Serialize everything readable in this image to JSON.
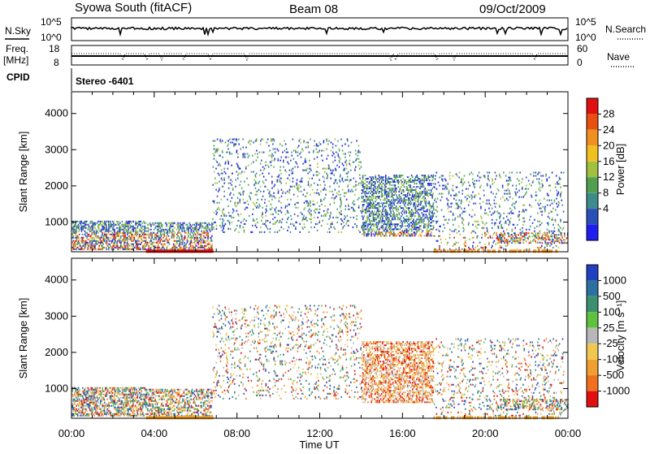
{
  "header": {
    "title": "Syowa South (fitACF)",
    "beam": "Beam 08",
    "date": "09/Oct/2009"
  },
  "noise_panel": {
    "left_label": "N.Sky",
    "right_label": "N.Search",
    "left_ticks": [
      "10^5",
      "10^0"
    ],
    "right_ticks": [
      "10^5",
      "10^0"
    ]
  },
  "freq_panel": {
    "left_label_line1": "Freq.",
    "left_label_line2": "[MHz]",
    "right_label": "Nave",
    "left_ticks": [
      "18",
      "8"
    ],
    "right_ticks": [
      "60",
      "0"
    ]
  },
  "cpid": {
    "label": "CPID",
    "value": "Stereo -6401"
  },
  "x_axis": {
    "label": "Time UT",
    "ticks": [
      "00:00",
      "04:00",
      "08:00",
      "12:00",
      "16:00",
      "20:00",
      "00:00"
    ]
  },
  "chart_data": [
    {
      "type": "heatmap",
      "name": "power",
      "xlabel": "Time UT",
      "ylabel": "Slant Range [km]",
      "xlim": [
        0,
        24
      ],
      "ylim": [
        180,
        4600
      ],
      "y_ticks": [
        "1000",
        "2000",
        "3000",
        "4000"
      ],
      "y_tick_values": [
        1000,
        2000,
        3000,
        4000
      ],
      "colorbar": {
        "label": "Power [dB]",
        "ticks": [
          "4",
          "8",
          "12",
          "16",
          "20",
          "24",
          "28"
        ],
        "colors": [
          "#1e1ef0",
          "#2a50b8",
          "#3c8c8c",
          "#50a050",
          "#a0c040",
          "#f0c020",
          "#f09020",
          "#e85010",
          "#e01010"
        ]
      },
      "regions": [
        {
          "t": [
            0.0,
            3.6
          ],
          "r": [
            230,
            1050
          ],
          "density": 0.55
        },
        {
          "t": [
            3.6,
            6.8
          ],
          "r": [
            230,
            1000
          ],
          "density": 0.45
        },
        {
          "t": [
            6.8,
            14.0
          ],
          "r": [
            700,
            3300
          ],
          "density": 0.12
        },
        {
          "t": [
            14.0,
            17.5
          ],
          "r": [
            600,
            2300
          ],
          "density": 0.45
        },
        {
          "t": [
            17.5,
            23.8
          ],
          "r": [
            230,
            2400
          ],
          "density": 0.12
        },
        {
          "t": [
            20.5,
            24.0
          ],
          "r": [
            400,
            700
          ],
          "density": 0.4
        }
      ]
    },
    {
      "type": "heatmap",
      "name": "velocity",
      "xlabel": "Time UT",
      "ylabel": "Slant Range [km]",
      "xlim": [
        0,
        24
      ],
      "ylim": [
        180,
        4600
      ],
      "y_ticks": [
        "1000",
        "2000",
        "3000",
        "4000"
      ],
      "y_tick_values": [
        1000,
        2000,
        3000,
        4000
      ],
      "colorbar": {
        "label": "Velocity [m s⁻¹]",
        "ticks": [
          "1000",
          "500",
          "100",
          "25",
          "-25",
          "-100",
          "-500",
          "-1000"
        ],
        "colors": [
          "#2040c0",
          "#2c70a0",
          "#3c9070",
          "#60c040",
          "#b8b8b8",
          "#f0c850",
          "#f0a030",
          "#f07020",
          "#e01010"
        ]
      },
      "regions": [
        {
          "t": [
            0.0,
            3.6
          ],
          "r": [
            230,
            1050
          ],
          "density": 0.55
        },
        {
          "t": [
            3.6,
            6.8
          ],
          "r": [
            230,
            1000
          ],
          "density": 0.45
        },
        {
          "t": [
            6.8,
            14.0
          ],
          "r": [
            700,
            3300
          ],
          "density": 0.12
        },
        {
          "t": [
            14.0,
            17.5
          ],
          "r": [
            600,
            2300
          ],
          "density": 0.45
        },
        {
          "t": [
            17.5,
            23.8
          ],
          "r": [
            230,
            2400
          ],
          "density": 0.12
        },
        {
          "t": [
            20.5,
            24.0
          ],
          "r": [
            400,
            700
          ],
          "density": 0.4
        }
      ]
    }
  ]
}
